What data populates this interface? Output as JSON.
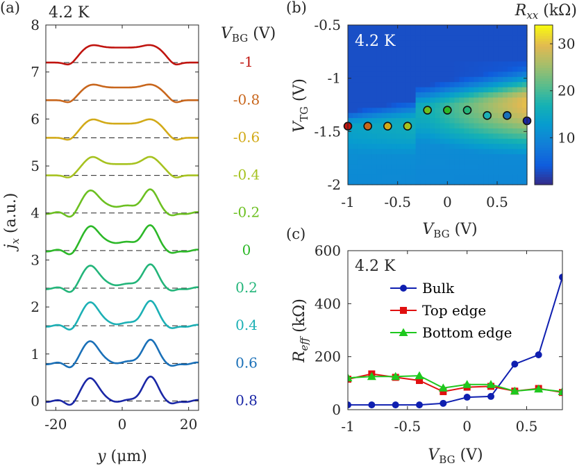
{
  "panel_labels": {
    "a": "(a)",
    "b": "(b)",
    "c": "(c)"
  },
  "chart_data": [
    {
      "type": "line",
      "panel": "a",
      "annotation": "4.2 K",
      "xlabel_var": "y",
      "xlabel_unit": "(μm)",
      "ylabel_var": "j",
      "ylabel_sub": "x",
      "ylabel_unit": "(a.u.)",
      "xlim": [
        -23,
        23
      ],
      "ylim": [
        -0.2,
        8
      ],
      "xticks": [
        -20,
        0,
        20
      ],
      "xtick_labels": [
        "-20",
        "0",
        "20"
      ],
      "yticks": [
        0,
        1,
        2,
        3,
        4,
        5,
        6,
        7,
        8
      ],
      "ytick_labels": [
        "0",
        "1",
        "2",
        "3",
        "4",
        "5",
        "6",
        "7",
        "8"
      ],
      "legend_var": "V",
      "legend_sub": "BG",
      "legend_unit": "(V)",
      "series": [
        {
          "name": "-1",
          "label": "-1",
          "offset": 7.2,
          "color": "#c0140f",
          "side_amp": 0.38,
          "center_amp": 0.32,
          "plateau": true
        },
        {
          "name": "-0.8",
          "label": "-0.8",
          "offset": 6.4,
          "color": "#c8661c",
          "side_amp": 0.34,
          "center_amp": 0.27,
          "plateau": true
        },
        {
          "name": "-0.6",
          "label": "-0.6",
          "offset": 5.6,
          "color": "#d2aa18",
          "side_amp": 0.4,
          "center_amp": 0.3,
          "plateau": true
        },
        {
          "name": "-0.4",
          "label": "-0.4",
          "offset": 4.8,
          "color": "#a6c21f",
          "side_amp": 0.4,
          "center_amp": 0.24,
          "plateau": true
        },
        {
          "name": "-0.2",
          "label": "-0.2",
          "offset": 4.0,
          "color": "#6cc021",
          "side_amp": 0.45,
          "center_amp": 0.15,
          "plateau": false
        },
        {
          "name": "0",
          "label": "0",
          "offset": 3.2,
          "color": "#2cb828",
          "side_amp": 0.48,
          "center_amp": 0.18,
          "plateau": false
        },
        {
          "name": "0.2",
          "label": "0.2",
          "offset": 2.4,
          "color": "#23b57a",
          "side_amp": 0.47,
          "center_amp": 0.08,
          "plateau": false
        },
        {
          "name": "0.4",
          "label": "0.4",
          "offset": 1.6,
          "color": "#1cb0b5",
          "side_amp": 0.5,
          "center_amp": 0.05,
          "plateau": false
        },
        {
          "name": "0.6",
          "label": "0.6",
          "offset": 0.8,
          "color": "#1a70b8",
          "side_amp": 0.48,
          "center_amp": 0.02,
          "plateau": false
        },
        {
          "name": "0.8",
          "label": "0.8",
          "offset": 0.0,
          "color": "#1a27a6",
          "side_amp": 0.5,
          "center_amp": 0.0,
          "plateau": false
        }
      ]
    },
    {
      "type": "heatmap",
      "panel": "b",
      "annotation": "4.2 K",
      "xlabel_var": "V",
      "xlabel_sub": "BG",
      "xlabel_unit": "(V)",
      "ylabel_var": "V",
      "ylabel_sub": "TG",
      "ylabel_unit": "(V)",
      "xlim": [
        -1,
        0.8
      ],
      "ylim": [
        -2,
        -0.5
      ],
      "xticks": [
        -1,
        -0.5,
        0,
        0.5
      ],
      "xtick_labels": [
        "-1",
        "-0.5",
        "0",
        "0.5"
      ],
      "yticks": [
        -0.5,
        -1,
        -1.5,
        -2
      ],
      "ytick_labels": [
        "-0.5",
        "-1",
        "-1.5",
        "-2"
      ],
      "colorbar_title_var": "R",
      "colorbar_title_sub": "xx",
      "colorbar_title_unit": "(kΩ)",
      "colorbar_range": [
        0,
        34
      ],
      "colorbar_ticks": [
        10,
        20,
        30
      ],
      "colorbar_tick_labels": [
        "10",
        "20",
        "30"
      ],
      "markers": [
        {
          "vbg": -1.0,
          "vtg": -1.45,
          "color": "#c0140f"
        },
        {
          "vbg": -0.8,
          "vtg": -1.45,
          "color": "#c8661c"
        },
        {
          "vbg": -0.6,
          "vtg": -1.45,
          "color": "#d2aa18"
        },
        {
          "vbg": -0.4,
          "vtg": -1.45,
          "color": "#a6c21f"
        },
        {
          "vbg": -0.2,
          "vtg": -1.3,
          "color": "#6cc021"
        },
        {
          "vbg": 0.0,
          "vtg": -1.3,
          "color": "#2cb828"
        },
        {
          "vbg": 0.2,
          "vtg": -1.3,
          "color": "#23b57a"
        },
        {
          "vbg": 0.4,
          "vtg": -1.35,
          "color": "#1cb0b5"
        },
        {
          "vbg": 0.6,
          "vtg": -1.35,
          "color": "#1a70b8"
        },
        {
          "vbg": 0.8,
          "vtg": -1.4,
          "color": "#1a27a6"
        }
      ]
    },
    {
      "type": "line",
      "panel": "c",
      "annotation": "4.2 K",
      "xlabel_var": "V",
      "xlabel_sub": "BG",
      "xlabel_unit": "(V)",
      "ylabel_var": "R",
      "ylabel_sub": "eff",
      "ylabel_unit": "(kΩ)",
      "xlim": [
        -1,
        0.8
      ],
      "ylim": [
        0,
        600
      ],
      "xticks": [
        -1,
        -0.5,
        0,
        0.5
      ],
      "xtick_labels": [
        "-1",
        "-0.5",
        "0",
        "0.5"
      ],
      "yticks": [
        0,
        200,
        400,
        600
      ],
      "ytick_labels": [
        "0",
        "200",
        "400",
        "600"
      ],
      "x": [
        -1,
        -0.8,
        -0.6,
        -0.4,
        -0.2,
        0,
        0.2,
        0.4,
        0.6,
        0.8
      ],
      "series": [
        {
          "name": "Bulk",
          "color": "#0f1fb0",
          "marker": "circle",
          "values": [
            18,
            18,
            18,
            18,
            24,
            47,
            50,
            172,
            207,
            500
          ]
        },
        {
          "name": "Top edge",
          "color": "#e01010",
          "marker": "square",
          "values": [
            115,
            135,
            122,
            110,
            68,
            85,
            88,
            70,
            80,
            65
          ]
        },
        {
          "name": "Bottom edge",
          "color": "#1ec81e",
          "marker": "triangle",
          "values": [
            120,
            125,
            125,
            128,
            82,
            95,
            95,
            70,
            78,
            68
          ]
        }
      ]
    }
  ]
}
